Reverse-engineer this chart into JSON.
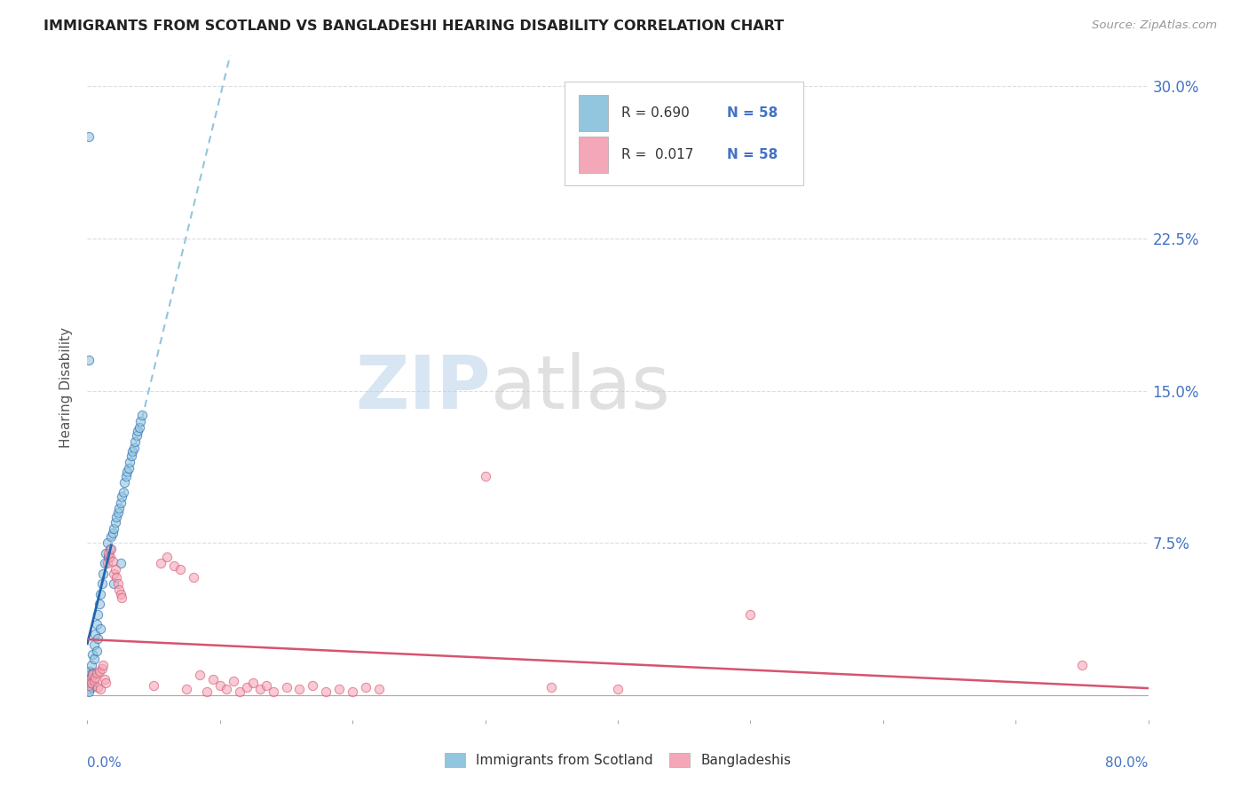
{
  "title": "IMMIGRANTS FROM SCOTLAND VS BANGLADESHI HEARING DISABILITY CORRELATION CHART",
  "source": "Source: ZipAtlas.com",
  "ylabel": "Hearing Disability",
  "legend_label1": "Immigrants from Scotland",
  "legend_label2": "Bangladeshis",
  "watermark_zip": "ZIP",
  "watermark_atlas": "atlas",
  "blue_scatter_color": "#92c5de",
  "pink_scatter_color": "#f4a7b9",
  "blue_line_color": "#2166ac",
  "blue_dash_color": "#92c5de",
  "pink_line_color": "#d6546e",
  "xmin": 0.0,
  "xmax": 0.8,
  "ymin": -0.012,
  "ymax": 0.315,
  "yticks": [
    0.0,
    0.075,
    0.15,
    0.225,
    0.3
  ],
  "ytick_labels": [
    "",
    "7.5%",
    "15.0%",
    "22.5%",
    "30.0%"
  ],
  "grid_color": "#dddddd",
  "legend_R1": "R = 0.690",
  "legend_N1": "N = 58",
  "legend_R2": "R =  0.017",
  "legend_N2": "N = 58",
  "blue_x": [
    0.001,
    0.001,
    0.001,
    0.001,
    0.002,
    0.002,
    0.002,
    0.003,
    0.003,
    0.003,
    0.004,
    0.004,
    0.005,
    0.005,
    0.006,
    0.007,
    0.007,
    0.008,
    0.008,
    0.009,
    0.01,
    0.01,
    0.011,
    0.012,
    0.013,
    0.014,
    0.015,
    0.016,
    0.017,
    0.018,
    0.019,
    0.02,
    0.02,
    0.021,
    0.022,
    0.023,
    0.024,
    0.025,
    0.025,
    0.026,
    0.027,
    0.028,
    0.029,
    0.03,
    0.031,
    0.032,
    0.033,
    0.034,
    0.035,
    0.036,
    0.037,
    0.038,
    0.039,
    0.04,
    0.041,
    0.001,
    0.001,
    0.001
  ],
  "blue_y": [
    0.005,
    0.01,
    0.003,
    0.007,
    0.008,
    0.012,
    0.006,
    0.009,
    0.015,
    0.004,
    0.02,
    0.011,
    0.025,
    0.018,
    0.03,
    0.035,
    0.022,
    0.04,
    0.028,
    0.045,
    0.05,
    0.033,
    0.055,
    0.06,
    0.065,
    0.07,
    0.075,
    0.068,
    0.072,
    0.078,
    0.08,
    0.082,
    0.055,
    0.085,
    0.088,
    0.09,
    0.092,
    0.095,
    0.065,
    0.098,
    0.1,
    0.105,
    0.108,
    0.11,
    0.112,
    0.115,
    0.118,
    0.12,
    0.122,
    0.125,
    0.128,
    0.13,
    0.132,
    0.135,
    0.138,
    0.165,
    0.275,
    0.002
  ],
  "pink_x": [
    0.001,
    0.002,
    0.003,
    0.004,
    0.005,
    0.006,
    0.007,
    0.008,
    0.009,
    0.01,
    0.011,
    0.012,
    0.013,
    0.014,
    0.015,
    0.016,
    0.017,
    0.018,
    0.019,
    0.02,
    0.021,
    0.022,
    0.023,
    0.024,
    0.025,
    0.026,
    0.05,
    0.055,
    0.06,
    0.065,
    0.07,
    0.075,
    0.08,
    0.085,
    0.09,
    0.095,
    0.1,
    0.105,
    0.11,
    0.115,
    0.12,
    0.125,
    0.13,
    0.135,
    0.14,
    0.15,
    0.16,
    0.17,
    0.18,
    0.19,
    0.2,
    0.21,
    0.22,
    0.3,
    0.35,
    0.4,
    0.5,
    0.75
  ],
  "pink_y": [
    0.005,
    0.008,
    0.006,
    0.01,
    0.007,
    0.009,
    0.011,
    0.004,
    0.012,
    0.003,
    0.013,
    0.015,
    0.008,
    0.006,
    0.065,
    0.07,
    0.068,
    0.072,
    0.066,
    0.06,
    0.062,
    0.058,
    0.055,
    0.052,
    0.05,
    0.048,
    0.005,
    0.065,
    0.068,
    0.064,
    0.062,
    0.003,
    0.058,
    0.01,
    0.002,
    0.008,
    0.005,
    0.003,
    0.007,
    0.002,
    0.004,
    0.006,
    0.003,
    0.005,
    0.002,
    0.004,
    0.003,
    0.005,
    0.002,
    0.003,
    0.002,
    0.004,
    0.003,
    0.108,
    0.004,
    0.003,
    0.04,
    0.015
  ]
}
